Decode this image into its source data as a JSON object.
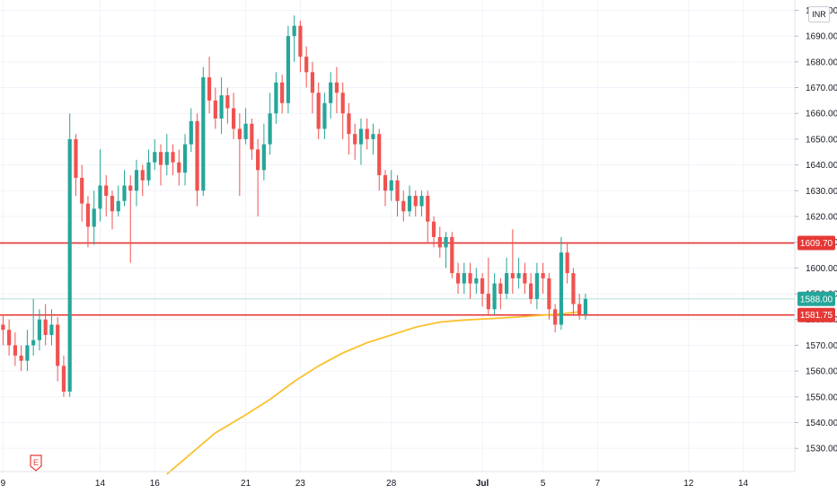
{
  "currency_label": "INR",
  "earnings_marker": "E",
  "colors": {
    "up": "#26a69a",
    "down": "#ef5350",
    "level": "#e53935",
    "ma": "#fbc02d",
    "grid": "#f0f3fa",
    "last_price": "#26a69a"
  },
  "chart_data": {
    "type": "candlestick",
    "y_axis": {
      "range": [
        1521,
        1704
      ],
      "ticks": [
        "1700.00",
        "1690.00",
        "1680.00",
        "1670.00",
        "1660.00",
        "1650.00",
        "1640.00",
        "1630.00",
        "1620.00",
        "1610.00",
        "1600.00",
        "1590.00",
        "1580.00",
        "1570.00",
        "1560.00",
        "1550.00",
        "1540.00",
        "1530.00"
      ]
    },
    "x_axis": {
      "labels": [
        {
          "text": "9",
          "index": 0
        },
        {
          "text": "14",
          "index": 16
        },
        {
          "text": "16",
          "index": 25
        },
        {
          "text": "21",
          "index": 40
        },
        {
          "text": "23",
          "index": 49
        },
        {
          "text": "28",
          "index": 64
        },
        {
          "text": "Jul",
          "index": 79
        },
        {
          "text": "5",
          "index": 89
        },
        {
          "text": "7",
          "index": 98
        },
        {
          "text": "12",
          "index": 113
        },
        {
          "text": "14",
          "index": 122
        }
      ],
      "bold_labels": [
        "Jul"
      ],
      "slots": 131
    },
    "price_levels": [
      {
        "label": "1609.70",
        "value": 1609.7,
        "color": "#e53935"
      },
      {
        "label": "1581.75",
        "value": 1581.75,
        "color": "#e53935"
      }
    ],
    "last_price": {
      "label": "1588.00",
      "value": 1588.0
    },
    "moving_average": [
      [
        27,
        1520
      ],
      [
        30,
        1526
      ],
      [
        35,
        1536
      ],
      [
        40,
        1543
      ],
      [
        44,
        1549
      ],
      [
        48,
        1556
      ],
      [
        52,
        1562
      ],
      [
        56,
        1567
      ],
      [
        60,
        1571
      ],
      [
        64,
        1574
      ],
      [
        68,
        1577
      ],
      [
        72,
        1579
      ],
      [
        76,
        1579.8
      ],
      [
        80,
        1580.3
      ],
      [
        85,
        1581
      ],
      [
        88,
        1581.5
      ],
      [
        91,
        1582
      ],
      [
        93,
        1582.5
      ],
      [
        95,
        1583
      ]
    ],
    "candles": [
      [
        1578,
        1576,
        1582,
        1570
      ],
      [
        1576,
        1570,
        1580,
        1566
      ],
      [
        1570,
        1566,
        1575,
        1562
      ],
      [
        1566,
        1564,
        1570,
        1560
      ],
      [
        1564,
        1570,
        1576,
        1560
      ],
      [
        1570,
        1572,
        1588,
        1566
      ],
      [
        1572,
        1580,
        1584,
        1568
      ],
      [
        1580,
        1574,
        1586,
        1570
      ],
      [
        1574,
        1578,
        1584,
        1570
      ],
      [
        1578,
        1562,
        1581,
        1556
      ],
      [
        1562,
        1552,
        1566,
        1550
      ],
      [
        1552,
        1650,
        1660,
        1550
      ],
      [
        1650,
        1635,
        1652,
        1628
      ],
      [
        1635,
        1625,
        1640,
        1618
      ],
      [
        1625,
        1616,
        1628,
        1608
      ],
      [
        1616,
        1623,
        1630,
        1609
      ],
      [
        1623,
        1632,
        1646,
        1618
      ],
      [
        1632,
        1628,
        1636,
        1620
      ],
      [
        1628,
        1622,
        1630,
        1615
      ],
      [
        1622,
        1626,
        1632,
        1620
      ],
      [
        1626,
        1632,
        1638,
        1624
      ],
      [
        1632,
        1630,
        1636,
        1602
      ],
      [
        1630,
        1638,
        1642,
        1624
      ],
      [
        1638,
        1634,
        1640,
        1628
      ],
      [
        1634,
        1641,
        1646,
        1632
      ],
      [
        1641,
        1645,
        1650,
        1638
      ],
      [
        1645,
        1640,
        1648,
        1632
      ],
      [
        1640,
        1645,
        1652,
        1636
      ],
      [
        1645,
        1641,
        1648,
        1636
      ],
      [
        1641,
        1637,
        1646,
        1632
      ],
      [
        1637,
        1648,
        1652,
        1632
      ],
      [
        1648,
        1657,
        1662,
        1645
      ],
      [
        1657,
        1630,
        1660,
        1624
      ],
      [
        1630,
        1674,
        1678,
        1628
      ],
      [
        1674,
        1665,
        1682,
        1660
      ],
      [
        1665,
        1658,
        1670,
        1654
      ],
      [
        1658,
        1667,
        1674,
        1652
      ],
      [
        1667,
        1662,
        1670,
        1656
      ],
      [
        1662,
        1654,
        1668,
        1650
      ],
      [
        1654,
        1650,
        1660,
        1628
      ],
      [
        1650,
        1656,
        1662,
        1648
      ],
      [
        1656,
        1646,
        1658,
        1642
      ],
      [
        1646,
        1638,
        1650,
        1620
      ],
      [
        1638,
        1648,
        1656,
        1634
      ],
      [
        1648,
        1660,
        1668,
        1644
      ],
      [
        1660,
        1672,
        1676,
        1656
      ],
      [
        1672,
        1664,
        1675,
        1660
      ],
      [
        1664,
        1690,
        1694,
        1660
      ],
      [
        1690,
        1694,
        1698,
        1680
      ],
      [
        1694,
        1682,
        1696,
        1676
      ],
      [
        1682,
        1676,
        1686,
        1670
      ],
      [
        1676,
        1668,
        1680,
        1660
      ],
      [
        1668,
        1654,
        1672,
        1650
      ],
      [
        1654,
        1664,
        1668,
        1650
      ],
      [
        1664,
        1672,
        1676,
        1658
      ],
      [
        1672,
        1668,
        1678,
        1660
      ],
      [
        1668,
        1660,
        1672,
        1650
      ],
      [
        1660,
        1652,
        1664,
        1644
      ],
      [
        1652,
        1648,
        1656,
        1642
      ],
      [
        1648,
        1654,
        1658,
        1640
      ],
      [
        1654,
        1650,
        1658,
        1646
      ],
      [
        1650,
        1652,
        1656,
        1644
      ],
      [
        1652,
        1636,
        1654,
        1630
      ],
      [
        1636,
        1630,
        1638,
        1624
      ],
      [
        1630,
        1634,
        1638,
        1626
      ],
      [
        1634,
        1626,
        1636,
        1620
      ],
      [
        1626,
        1622,
        1630,
        1618
      ],
      [
        1622,
        1628,
        1632,
        1620
      ],
      [
        1628,
        1624,
        1630,
        1620
      ],
      [
        1624,
        1628,
        1630,
        1620
      ],
      [
        1628,
        1618,
        1630,
        1610
      ],
      [
        1618,
        1612,
        1620,
        1608
      ],
      [
        1612,
        1608,
        1616,
        1604
      ],
      [
        1608,
        1612,
        1614,
        1600
      ],
      [
        1612,
        1598,
        1614,
        1596
      ],
      [
        1598,
        1594,
        1602,
        1590
      ],
      [
        1594,
        1598,
        1602,
        1590
      ],
      [
        1598,
        1594,
        1602,
        1588
      ],
      [
        1594,
        1596,
        1600,
        1590
      ],
      [
        1596,
        1590,
        1598,
        1585
      ],
      [
        1590,
        1584,
        1604,
        1582
      ],
      [
        1584,
        1594,
        1598,
        1582
      ],
      [
        1594,
        1590,
        1596,
        1584
      ],
      [
        1590,
        1598,
        1604,
        1588
      ],
      [
        1598,
        1596,
        1615,
        1590
      ],
      [
        1596,
        1598,
        1604,
        1592
      ],
      [
        1598,
        1594,
        1602,
        1590
      ],
      [
        1594,
        1588,
        1598,
        1586
      ],
      [
        1588,
        1598,
        1602,
        1584
      ],
      [
        1598,
        1596,
        1602,
        1590
      ],
      [
        1596,
        1584,
        1598,
        1580
      ],
      [
        1584,
        1578,
        1586,
        1575
      ],
      [
        1578,
        1606,
        1612,
        1576
      ],
      [
        1606,
        1598,
        1610,
        1594
      ],
      [
        1598,
        1586,
        1600,
        1582
      ],
      [
        1586,
        1582,
        1590,
        1580
      ],
      [
        1582,
        1588,
        1590,
        1580
      ]
    ]
  }
}
